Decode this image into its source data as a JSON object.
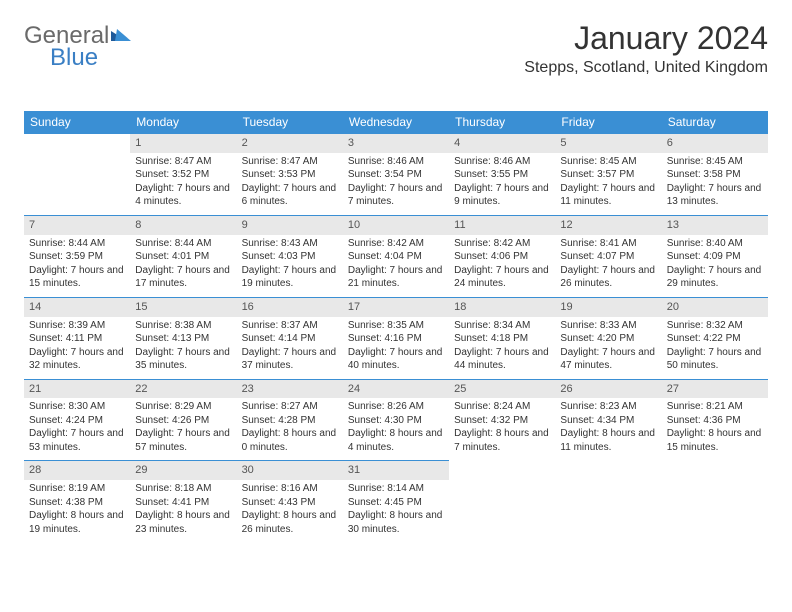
{
  "logo": {
    "text1": "General",
    "text2": "Blue"
  },
  "title": "January 2024",
  "location": "Stepps, Scotland, United Kingdom",
  "colors": {
    "header_bg": "#3a8fd4",
    "header_text": "#ffffff",
    "daynum_bg": "#e8e8e8",
    "rule": "#3a8fd4",
    "text": "#333333",
    "logo_gray": "#6a6a6a",
    "logo_blue": "#3a7fc4"
  },
  "dow": [
    "Sunday",
    "Monday",
    "Tuesday",
    "Wednesday",
    "Thursday",
    "Friday",
    "Saturday"
  ],
  "layout": {
    "columns": 7,
    "rows": 5,
    "first_offset": 1
  },
  "days": [
    {
      "n": "1",
      "sr": "Sunrise: 8:47 AM",
      "ss": "Sunset: 3:52 PM",
      "dl": "Daylight: 7 hours and 4 minutes."
    },
    {
      "n": "2",
      "sr": "Sunrise: 8:47 AM",
      "ss": "Sunset: 3:53 PM",
      "dl": "Daylight: 7 hours and 6 minutes."
    },
    {
      "n": "3",
      "sr": "Sunrise: 8:46 AM",
      "ss": "Sunset: 3:54 PM",
      "dl": "Daylight: 7 hours and 7 minutes."
    },
    {
      "n": "4",
      "sr": "Sunrise: 8:46 AM",
      "ss": "Sunset: 3:55 PM",
      "dl": "Daylight: 7 hours and 9 minutes."
    },
    {
      "n": "5",
      "sr": "Sunrise: 8:45 AM",
      "ss": "Sunset: 3:57 PM",
      "dl": "Daylight: 7 hours and 11 minutes."
    },
    {
      "n": "6",
      "sr": "Sunrise: 8:45 AM",
      "ss": "Sunset: 3:58 PM",
      "dl": "Daylight: 7 hours and 13 minutes."
    },
    {
      "n": "7",
      "sr": "Sunrise: 8:44 AM",
      "ss": "Sunset: 3:59 PM",
      "dl": "Daylight: 7 hours and 15 minutes."
    },
    {
      "n": "8",
      "sr": "Sunrise: 8:44 AM",
      "ss": "Sunset: 4:01 PM",
      "dl": "Daylight: 7 hours and 17 minutes."
    },
    {
      "n": "9",
      "sr": "Sunrise: 8:43 AM",
      "ss": "Sunset: 4:03 PM",
      "dl": "Daylight: 7 hours and 19 minutes."
    },
    {
      "n": "10",
      "sr": "Sunrise: 8:42 AM",
      "ss": "Sunset: 4:04 PM",
      "dl": "Daylight: 7 hours and 21 minutes."
    },
    {
      "n": "11",
      "sr": "Sunrise: 8:42 AM",
      "ss": "Sunset: 4:06 PM",
      "dl": "Daylight: 7 hours and 24 minutes."
    },
    {
      "n": "12",
      "sr": "Sunrise: 8:41 AM",
      "ss": "Sunset: 4:07 PM",
      "dl": "Daylight: 7 hours and 26 minutes."
    },
    {
      "n": "13",
      "sr": "Sunrise: 8:40 AM",
      "ss": "Sunset: 4:09 PM",
      "dl": "Daylight: 7 hours and 29 minutes."
    },
    {
      "n": "14",
      "sr": "Sunrise: 8:39 AM",
      "ss": "Sunset: 4:11 PM",
      "dl": "Daylight: 7 hours and 32 minutes."
    },
    {
      "n": "15",
      "sr": "Sunrise: 8:38 AM",
      "ss": "Sunset: 4:13 PM",
      "dl": "Daylight: 7 hours and 35 minutes."
    },
    {
      "n": "16",
      "sr": "Sunrise: 8:37 AM",
      "ss": "Sunset: 4:14 PM",
      "dl": "Daylight: 7 hours and 37 minutes."
    },
    {
      "n": "17",
      "sr": "Sunrise: 8:35 AM",
      "ss": "Sunset: 4:16 PM",
      "dl": "Daylight: 7 hours and 40 minutes."
    },
    {
      "n": "18",
      "sr": "Sunrise: 8:34 AM",
      "ss": "Sunset: 4:18 PM",
      "dl": "Daylight: 7 hours and 44 minutes."
    },
    {
      "n": "19",
      "sr": "Sunrise: 8:33 AM",
      "ss": "Sunset: 4:20 PM",
      "dl": "Daylight: 7 hours and 47 minutes."
    },
    {
      "n": "20",
      "sr": "Sunrise: 8:32 AM",
      "ss": "Sunset: 4:22 PM",
      "dl": "Daylight: 7 hours and 50 minutes."
    },
    {
      "n": "21",
      "sr": "Sunrise: 8:30 AM",
      "ss": "Sunset: 4:24 PM",
      "dl": "Daylight: 7 hours and 53 minutes."
    },
    {
      "n": "22",
      "sr": "Sunrise: 8:29 AM",
      "ss": "Sunset: 4:26 PM",
      "dl": "Daylight: 7 hours and 57 minutes."
    },
    {
      "n": "23",
      "sr": "Sunrise: 8:27 AM",
      "ss": "Sunset: 4:28 PM",
      "dl": "Daylight: 8 hours and 0 minutes."
    },
    {
      "n": "24",
      "sr": "Sunrise: 8:26 AM",
      "ss": "Sunset: 4:30 PM",
      "dl": "Daylight: 8 hours and 4 minutes."
    },
    {
      "n": "25",
      "sr": "Sunrise: 8:24 AM",
      "ss": "Sunset: 4:32 PM",
      "dl": "Daylight: 8 hours and 7 minutes."
    },
    {
      "n": "26",
      "sr": "Sunrise: 8:23 AM",
      "ss": "Sunset: 4:34 PM",
      "dl": "Daylight: 8 hours and 11 minutes."
    },
    {
      "n": "27",
      "sr": "Sunrise: 8:21 AM",
      "ss": "Sunset: 4:36 PM",
      "dl": "Daylight: 8 hours and 15 minutes."
    },
    {
      "n": "28",
      "sr": "Sunrise: 8:19 AM",
      "ss": "Sunset: 4:38 PM",
      "dl": "Daylight: 8 hours and 19 minutes."
    },
    {
      "n": "29",
      "sr": "Sunrise: 8:18 AM",
      "ss": "Sunset: 4:41 PM",
      "dl": "Daylight: 8 hours and 23 minutes."
    },
    {
      "n": "30",
      "sr": "Sunrise: 8:16 AM",
      "ss": "Sunset: 4:43 PM",
      "dl": "Daylight: 8 hours and 26 minutes."
    },
    {
      "n": "31",
      "sr": "Sunrise: 8:14 AM",
      "ss": "Sunset: 4:45 PM",
      "dl": "Daylight: 8 hours and 30 minutes."
    }
  ]
}
